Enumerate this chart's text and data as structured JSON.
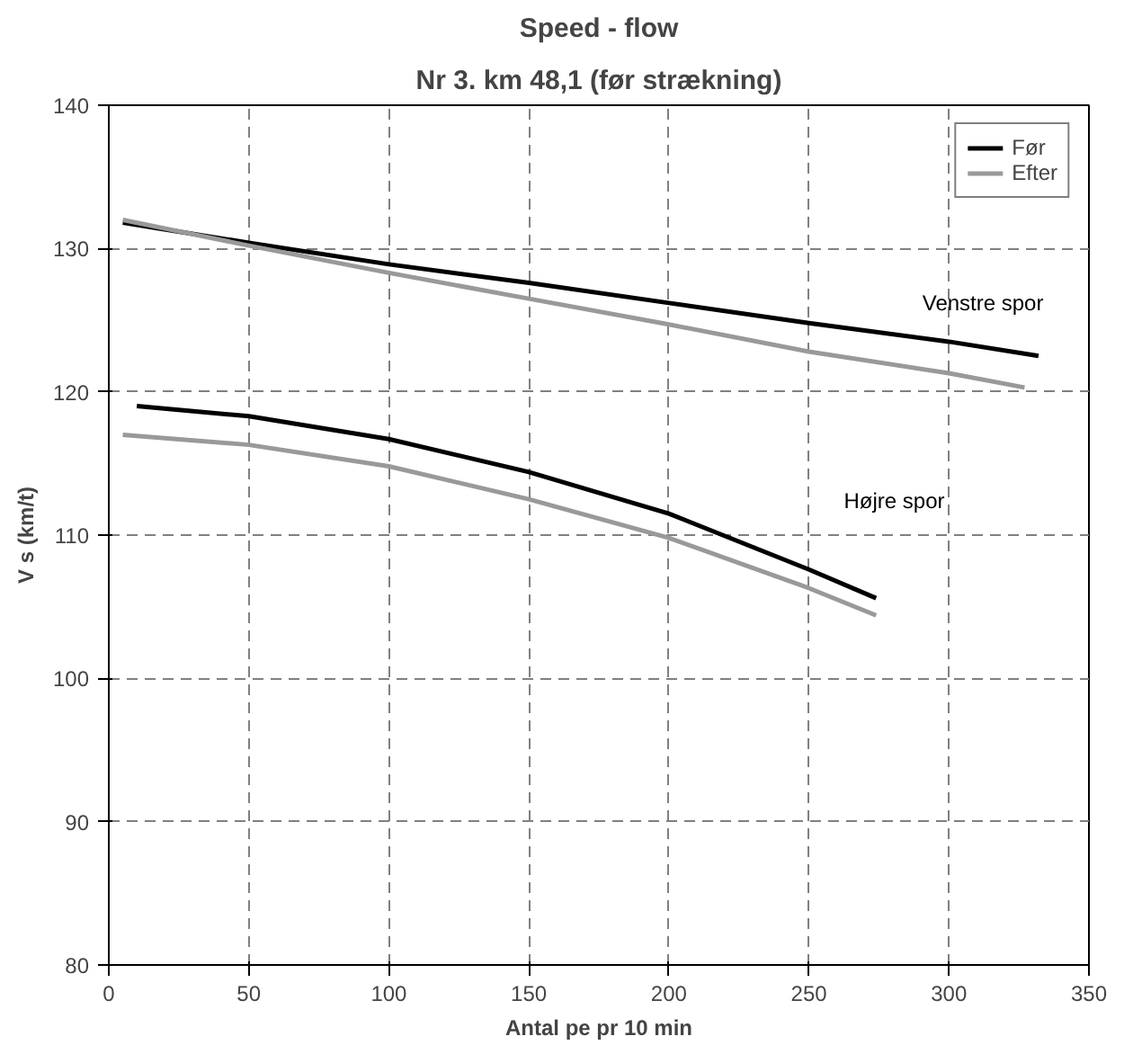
{
  "chart_data": {
    "type": "line",
    "title": "Speed - flow",
    "subtitle": "Nr 3. km 48,1 (før strækning)",
    "xlabel": "Antal pe pr 10 min",
    "ylabel": "V s (km/t)",
    "series": [
      {
        "name": "Før",
        "color": "#000000",
        "x": [
          5,
          50,
          100,
          150,
          200,
          250,
          300,
          332
        ],
        "values": [
          131.8,
          130.4,
          128.9,
          127.6,
          126.2,
          124.8,
          123.5,
          122.5
        ]
      },
      {
        "name": "Efter",
        "color": "#999999",
        "x": [
          5,
          50,
          100,
          150,
          200,
          250,
          300,
          327
        ],
        "values": [
          132,
          130.2,
          128.3,
          126.5,
          124.7,
          122.8,
          121.3,
          120.3
        ]
      },
      {
        "color": "#000000",
        "x": [
          10,
          50,
          100,
          150,
          200,
          250,
          274
        ],
        "values": [
          119,
          118.3,
          116.7,
          114.4,
          111.5,
          107.6,
          105.6
        ]
      },
      {
        "color": "#999999",
        "x": [
          5,
          50,
          100,
          150,
          200,
          250,
          274
        ],
        "values": [
          117,
          116.3,
          114.8,
          112.5,
          109.8,
          106.3,
          104.4
        ]
      }
    ],
    "annotations": [
      "Venstre spor",
      "Højre spor"
    ],
    "xlim": [
      0,
      350
    ],
    "xticks": [
      0,
      50,
      100,
      150,
      200,
      250,
      300,
      350
    ],
    "ylim": [
      80,
      140
    ],
    "yticks": [
      80,
      90,
      100,
      110,
      120,
      130,
      140
    ],
    "grid": true,
    "legend": "top right",
    "marker": "none",
    "line_style": "solid"
  }
}
